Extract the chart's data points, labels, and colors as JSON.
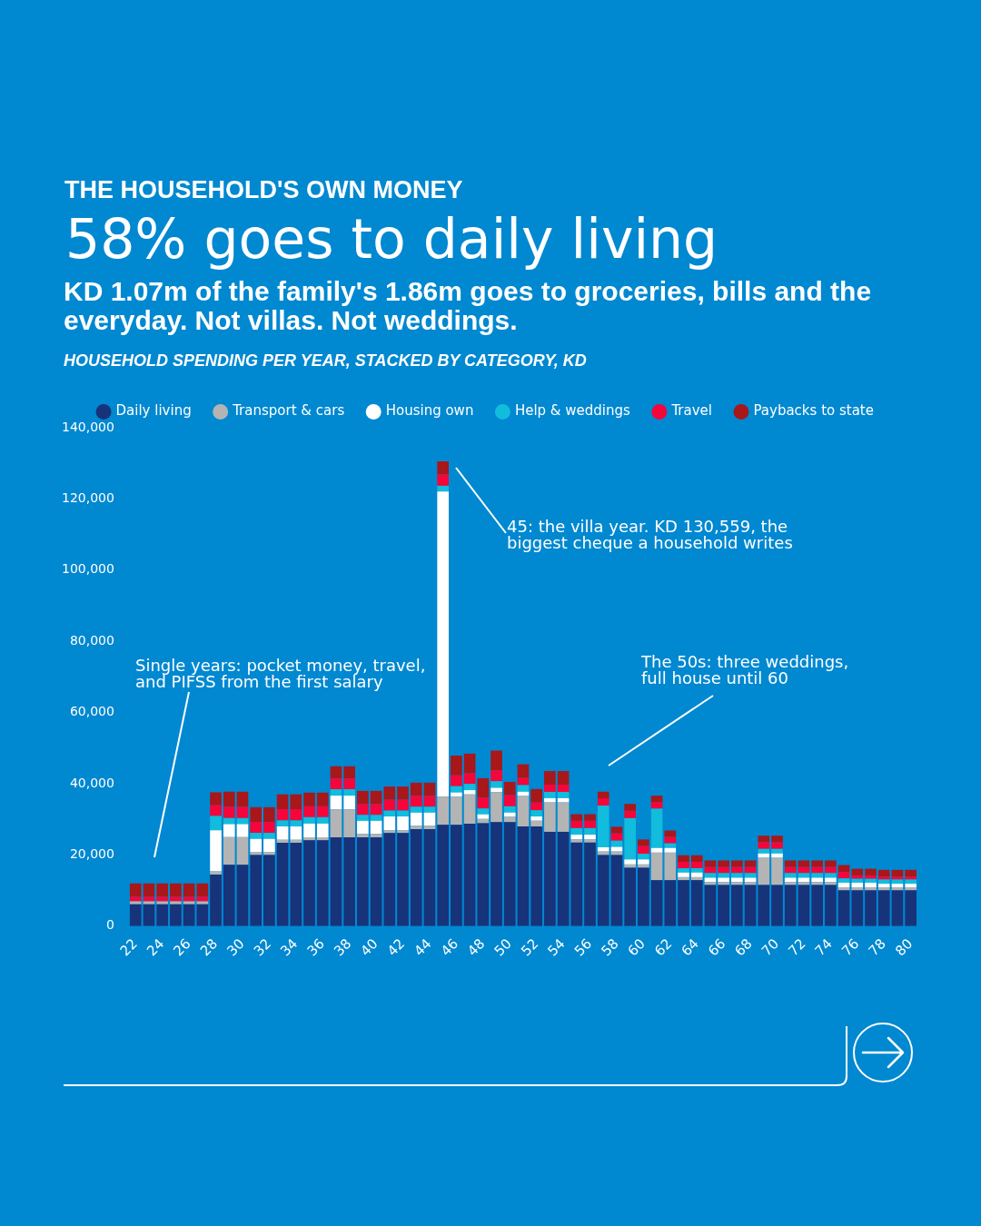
{
  "chart_data": {
    "type": "bar",
    "stacked": true,
    "title": "58% goes to daily living",
    "subtitle": "KD 1.07m of the family's 1.86m goes to groceries, bills and the everyday. Not villas. Not weddings.",
    "annotations": [
      "THE HOUSEHOLD'S OWN MONEY",
      "HOUSEHOLD SPENDING PER YEAR, STACKED BY CATEGORY, KD",
      "Single years: pocket money, travel, and PIFSS from the first salary",
      "45: the villa year. KD 130,559, the biggest cheque a household writes",
      "The 50s: three weddings, full house until 60"
    ],
    "categories": [
      "22",
      null,
      "24",
      null,
      "26",
      null,
      "28",
      null,
      "30",
      null,
      "32",
      null,
      "34",
      null,
      "36",
      null,
      "38",
      null,
      "40",
      null,
      "42",
      null,
      "44",
      null,
      "46",
      null,
      "48",
      null,
      "50",
      null,
      "52",
      null,
      "54",
      null,
      "56",
      null,
      "58",
      null,
      "60",
      null,
      "62",
      null,
      "64",
      null,
      "66",
      null,
      "68",
      null,
      "70",
      null,
      "72",
      null,
      "74",
      null,
      "76",
      null,
      "78",
      null,
      "80"
    ],
    "series": [
      {
        "name": "Daily living",
        "color": "#17337a",
        "values": [
          6100,
          6100,
          6100,
          6100,
          6100,
          6100,
          14500,
          17200,
          17200,
          20000,
          20000,
          23400,
          23400,
          24100,
          24100,
          24950,
          24950,
          24950,
          24950,
          26150,
          26150,
          27250,
          27250,
          28450,
          28450,
          28750,
          28900,
          29200,
          29200,
          28000,
          28000,
          26500,
          26500,
          23450,
          23450,
          19950,
          19950,
          16400,
          16400,
          12900,
          12900,
          12900,
          12900,
          11550,
          11550,
          11550,
          11550,
          11550,
          11550,
          11550,
          11550,
          11550,
          11550,
          10050,
          10050,
          10050,
          10050,
          10050,
          10050
        ]
      },
      {
        "name": "Transport & cars",
        "color": "#b4b4b4",
        "values": [
          850,
          850,
          850,
          850,
          850,
          850,
          850,
          7800,
          7800,
          850,
          850,
          850,
          850,
          850,
          850,
          7850,
          7850,
          930,
          930,
          750,
          750,
          930,
          930,
          7900,
          7900,
          8250,
          1200,
          8450,
          1500,
          8550,
          1600,
          8250,
          8250,
          930,
          930,
          1000,
          1000,
          930,
          930,
          7750,
          7750,
          850,
          850,
          850,
          850,
          850,
          850,
          7650,
          7650,
          850,
          850,
          850,
          850,
          850,
          850,
          850,
          850,
          850,
          850
        ]
      },
      {
        "name": "Housing own",
        "color": "#ffffff",
        "values": [
          0,
          0,
          0,
          0,
          0,
          0,
          11600,
          3650,
          3650,
          3650,
          3650,
          3750,
          3750,
          3850,
          3850,
          3850,
          3850,
          3700,
          3700,
          3900,
          3900,
          3700,
          3700,
          85700,
          1200,
          1200,
          1300,
          1200,
          1200,
          1200,
          1200,
          1200,
          1200,
          1300,
          1300,
          1200,
          1300,
          1400,
          1400,
          1300,
          1300,
          1300,
          1300,
          1200,
          1200,
          1200,
          1200,
          1200,
          1200,
          1200,
          1200,
          1200,
          1200,
          1300,
          1300,
          1300,
          1000,
          1000,
          1000
        ]
      },
      {
        "name": "Help & weddings",
        "color": "#12bcdc",
        "values": [
          0,
          0,
          0,
          0,
          0,
          0,
          4000,
          1700,
          1700,
          1700,
          1700,
          1700,
          1700,
          1800,
          1800,
          1800,
          1800,
          1650,
          1650,
          1650,
          1650,
          1650,
          1650,
          1650,
          1750,
          1750,
          1650,
          1850,
          1750,
          1850,
          1750,
          1750,
          1750,
          1850,
          1850,
          11700,
          1750,
          11600,
          1600,
          11050,
          1300,
          1200,
          1200,
          1300,
          1300,
          1300,
          1300,
          1300,
          1300,
          1300,
          1300,
          1300,
          1300,
          1200,
          1100,
          1100,
          1200,
          1200,
          1200
        ]
      },
      {
        "name": "Travel",
        "color": "#f5053a",
        "values": [
          1300,
          1300,
          1300,
          1300,
          1300,
          1300,
          3000,
          3150,
          3150,
          3050,
          3050,
          3150,
          3150,
          3050,
          3050,
          3000,
          3000,
          3050,
          3050,
          3050,
          3050,
          3050,
          3050,
          3150,
          3050,
          2950,
          3050,
          3050,
          3150,
          2050,
          2150,
          2050,
          2050,
          2050,
          2050,
          2050,
          2050,
          2050,
          2150,
          1850,
          1800,
          1800,
          1800,
          1700,
          1700,
          1700,
          1700,
          1850,
          1850,
          1700,
          1700,
          1700,
          1700,
          1800,
          950,
          950,
          850,
          850,
          850
        ]
      },
      {
        "name": "Paybacks to state",
        "color": "#a8171a",
        "values": [
          3750,
          3750,
          3750,
          3750,
          3750,
          3750,
          3650,
          4250,
          4250,
          4150,
          4150,
          4150,
          4150,
          3850,
          3850,
          3450,
          3450,
          3700,
          3700,
          3700,
          3700,
          3700,
          3700,
          3700,
          5550,
          5550,
          5450,
          5550,
          3700,
          3800,
          3800,
          3800,
          3800,
          1850,
          1850,
          1850,
          1850,
          1950,
          1850,
          1800,
          1800,
          1850,
          1850,
          1850,
          1850,
          1850,
          1850,
          1850,
          1850,
          1850,
          1850,
          1850,
          1850,
          1950,
          1850,
          1850,
          1850,
          1850,
          1850
        ]
      }
    ],
    "ylim": [
      0,
      140000
    ],
    "yticks": [
      {
        "value": 0,
        "label": "0"
      },
      {
        "value": 20000,
        "label": "20,000"
      },
      {
        "value": 40000,
        "label": "40,000"
      },
      {
        "value": 60000,
        "label": "60,000"
      },
      {
        "value": 80000,
        "label": "80,000"
      },
      {
        "value": 100000,
        "label": "100,000"
      },
      {
        "value": 120000,
        "label": "120,000"
      },
      {
        "value": 140000,
        "label": "140,000"
      }
    ],
    "legend": "top"
  }
}
